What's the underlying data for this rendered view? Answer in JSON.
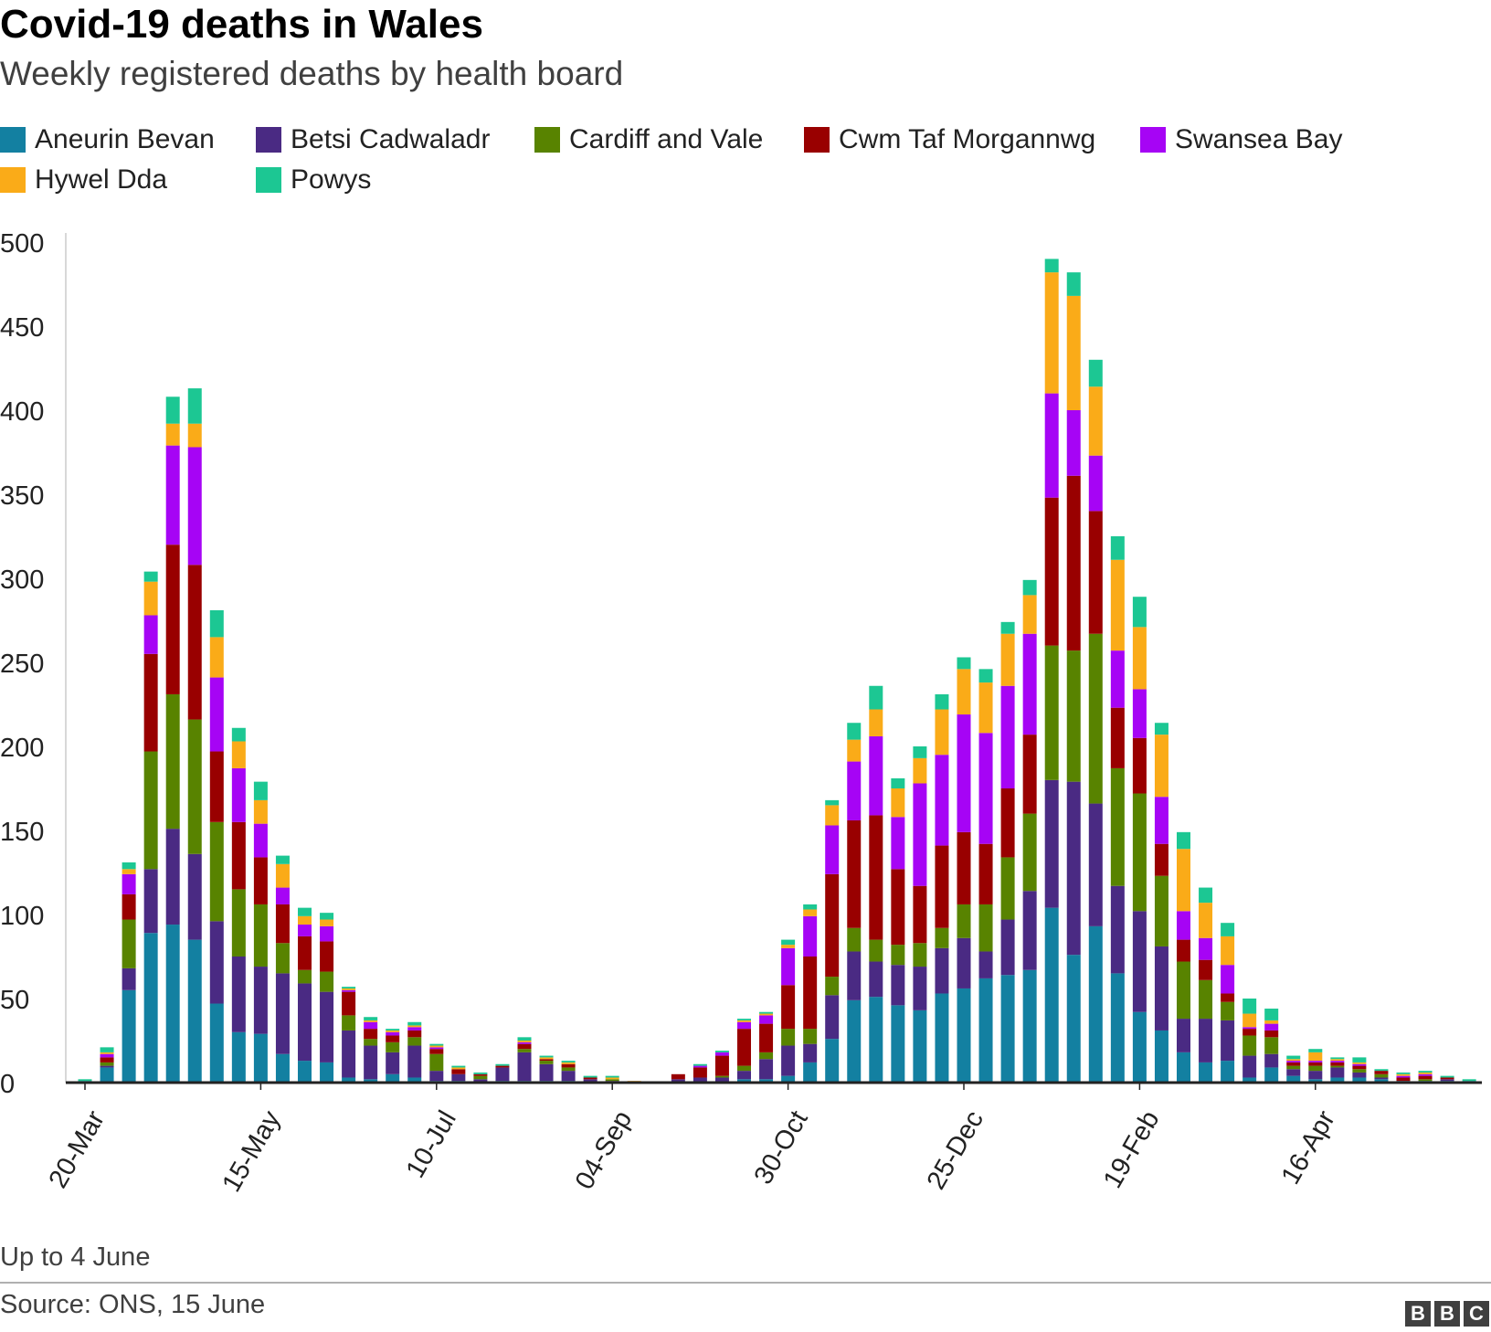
{
  "header": {
    "title": "Covid-19 deaths in Wales",
    "subtitle": "Weekly registered deaths by health board"
  },
  "footer": {
    "note": "Up to 4 June",
    "source": "Source: ONS, 15 June",
    "logo": [
      "B",
      "B",
      "C"
    ]
  },
  "chart_data": {
    "type": "bar",
    "stacked": true,
    "title": "Covid-19 deaths in Wales",
    "subtitle": "Weekly registered deaths by health board",
    "xlabel": "",
    "ylabel": "",
    "ylim": [
      0,
      500
    ],
    "yticks": [
      0,
      50,
      100,
      150,
      200,
      250,
      300,
      350,
      400,
      450,
      500
    ],
    "xticks": [
      {
        "index": 0,
        "label": "20-Mar"
      },
      {
        "index": 8,
        "label": "15-May"
      },
      {
        "index": 16,
        "label": "10-Jul"
      },
      {
        "index": 24,
        "label": "04-Sep"
      },
      {
        "index": 32,
        "label": "30-Oct"
      },
      {
        "index": 40,
        "label": "25-Dec"
      },
      {
        "index": 48,
        "label": "19-Feb"
      },
      {
        "index": 56,
        "label": "16-Apr"
      }
    ],
    "grid": false,
    "legend_position": "top",
    "categories": [
      "20-Mar",
      "27-Mar",
      "03-Apr",
      "10-Apr",
      "17-Apr",
      "24-Apr",
      "01-May",
      "08-May",
      "15-May",
      "22-May",
      "29-May",
      "05-Jun",
      "12-Jun",
      "19-Jun",
      "26-Jun",
      "03-Jul",
      "10-Jul",
      "17-Jul",
      "24-Jul",
      "31-Jul",
      "07-Aug",
      "14-Aug",
      "21-Aug",
      "28-Aug",
      "04-Sep",
      "11-Sep",
      "18-Sep",
      "25-Sep",
      "02-Oct",
      "09-Oct",
      "16-Oct",
      "23-Oct",
      "30-Oct",
      "06-Nov",
      "13-Nov",
      "20-Nov",
      "27-Nov",
      "04-Dec",
      "11-Dec",
      "18-Dec",
      "25-Dec",
      "01-Jan",
      "08-Jan",
      "15-Jan",
      "22-Jan",
      "29-Jan",
      "05-Feb",
      "12-Feb",
      "19-Feb",
      "26-Feb",
      "05-Mar",
      "12-Mar",
      "19-Mar",
      "26-Mar",
      "02-Apr",
      "09-Apr",
      "16-Apr",
      "23-Apr",
      "30-Apr",
      "07-May",
      "14-May",
      "21-May",
      "28-May",
      "04-Jun"
    ],
    "series": [
      {
        "name": "Aneurin Bevan",
        "color": "#1380A1",
        "values": [
          1,
          9,
          55,
          89,
          94,
          85,
          47,
          30,
          29,
          17,
          13,
          12,
          3,
          2,
          5,
          3,
          1,
          1,
          0,
          1,
          1,
          1,
          1,
          0,
          0,
          0,
          0,
          0,
          0,
          0,
          2,
          2,
          4,
          12,
          26,
          49,
          51,
          46,
          43,
          53,
          56,
          62,
          64,
          67,
          104,
          76,
          93,
          65,
          42,
          31,
          18,
          12,
          13,
          3,
          9,
          4,
          2,
          3,
          3,
          2,
          1,
          1,
          1,
          1
        ]
      },
      {
        "name": "Betsi Cadwaladr",
        "color": "#4A2A83",
        "values": [
          0,
          1,
          13,
          38,
          57,
          51,
          49,
          45,
          40,
          48,
          46,
          42,
          28,
          20,
          13,
          19,
          6,
          4,
          2,
          8,
          17,
          10,
          6,
          2,
          1,
          0,
          0,
          2,
          3,
          3,
          5,
          12,
          18,
          11,
          26,
          29,
          21,
          24,
          26,
          27,
          30,
          16,
          33,
          47,
          76,
          103,
          73,
          52,
          60,
          50,
          20,
          26,
          24,
          13,
          8,
          4,
          5,
          6,
          3,
          1,
          0,
          0,
          1,
          0
        ]
      },
      {
        "name": "Cardiff and Vale",
        "color": "#588300",
        "values": [
          0,
          2,
          29,
          70,
          80,
          80,
          59,
          40,
          37,
          18,
          8,
          12,
          9,
          4,
          6,
          5,
          10,
          0,
          2,
          0,
          2,
          2,
          2,
          0,
          1,
          0,
          0,
          0,
          0,
          1,
          3,
          4,
          10,
          9,
          11,
          14,
          13,
          12,
          14,
          12,
          20,
          28,
          37,
          46,
          80,
          78,
          101,
          70,
          70,
          42,
          34,
          23,
          11,
          12,
          10,
          2,
          3,
          1,
          2,
          2,
          0,
          1,
          0,
          0
        ]
      },
      {
        "name": "Cwm Taf Morgannwg",
        "color": "#990000",
        "values": [
          0,
          3,
          15,
          58,
          89,
          92,
          42,
          40,
          28,
          23,
          20,
          18,
          14,
          6,
          4,
          4,
          3,
          3,
          1,
          1,
          3,
          1,
          2,
          1,
          0,
          0,
          0,
          3,
          6,
          12,
          22,
          17,
          26,
          43,
          61,
          64,
          74,
          45,
          34,
          49,
          43,
          36,
          41,
          47,
          88,
          104,
          73,
          36,
          33,
          19,
          13,
          12,
          5,
          4,
          4,
          2,
          2,
          2,
          2,
          2,
          2,
          2,
          1,
          0
        ]
      },
      {
        "name": "Swansea Bay",
        "color": "#A604F5",
        "values": [
          0,
          2,
          12,
          23,
          59,
          70,
          44,
          32,
          20,
          10,
          7,
          9,
          1,
          4,
          2,
          2,
          1,
          0,
          0,
          0,
          1,
          0,
          0,
          0,
          0,
          0,
          0,
          0,
          1,
          2,
          4,
          5,
          22,
          24,
          29,
          35,
          47,
          31,
          61,
          54,
          70,
          66,
          61,
          60,
          62,
          39,
          33,
          34,
          29,
          28,
          17,
          13,
          17,
          1,
          4,
          1,
          1,
          1,
          1,
          0,
          1,
          1,
          0,
          0
        ]
      },
      {
        "name": "Hywel Dda",
        "color": "#FAAB18",
        "values": [
          0,
          1,
          3,
          20,
          13,
          14,
          24,
          16,
          14,
          14,
          5,
          4,
          1,
          1,
          1,
          1,
          1,
          1,
          0,
          0,
          1,
          1,
          1,
          0,
          1,
          1,
          0,
          0,
          0,
          0,
          1,
          1,
          2,
          4,
          12,
          13,
          16,
          17,
          15,
          27,
          27,
          30,
          31,
          23,
          72,
          68,
          41,
          54,
          37,
          37,
          37,
          21,
          17,
          8,
          2,
          1,
          5,
          1,
          1,
          0,
          1,
          1,
          0,
          0
        ]
      },
      {
        "name": "Powys",
        "color": "#1CC793",
        "values": [
          1,
          3,
          4,
          6,
          16,
          21,
          16,
          8,
          11,
          5,
          5,
          4,
          1,
          2,
          1,
          2,
          1,
          1,
          1,
          1,
          2,
          1,
          1,
          1,
          1,
          0,
          0,
          0,
          1,
          1,
          1,
          1,
          3,
          3,
          3,
          10,
          14,
          6,
          7,
          9,
          7,
          8,
          7,
          9,
          8,
          14,
          16,
          14,
          18,
          7,
          10,
          9,
          8,
          9,
          7,
          2,
          2,
          1,
          3,
          1,
          1,
          1,
          1,
          1
        ]
      }
    ]
  }
}
